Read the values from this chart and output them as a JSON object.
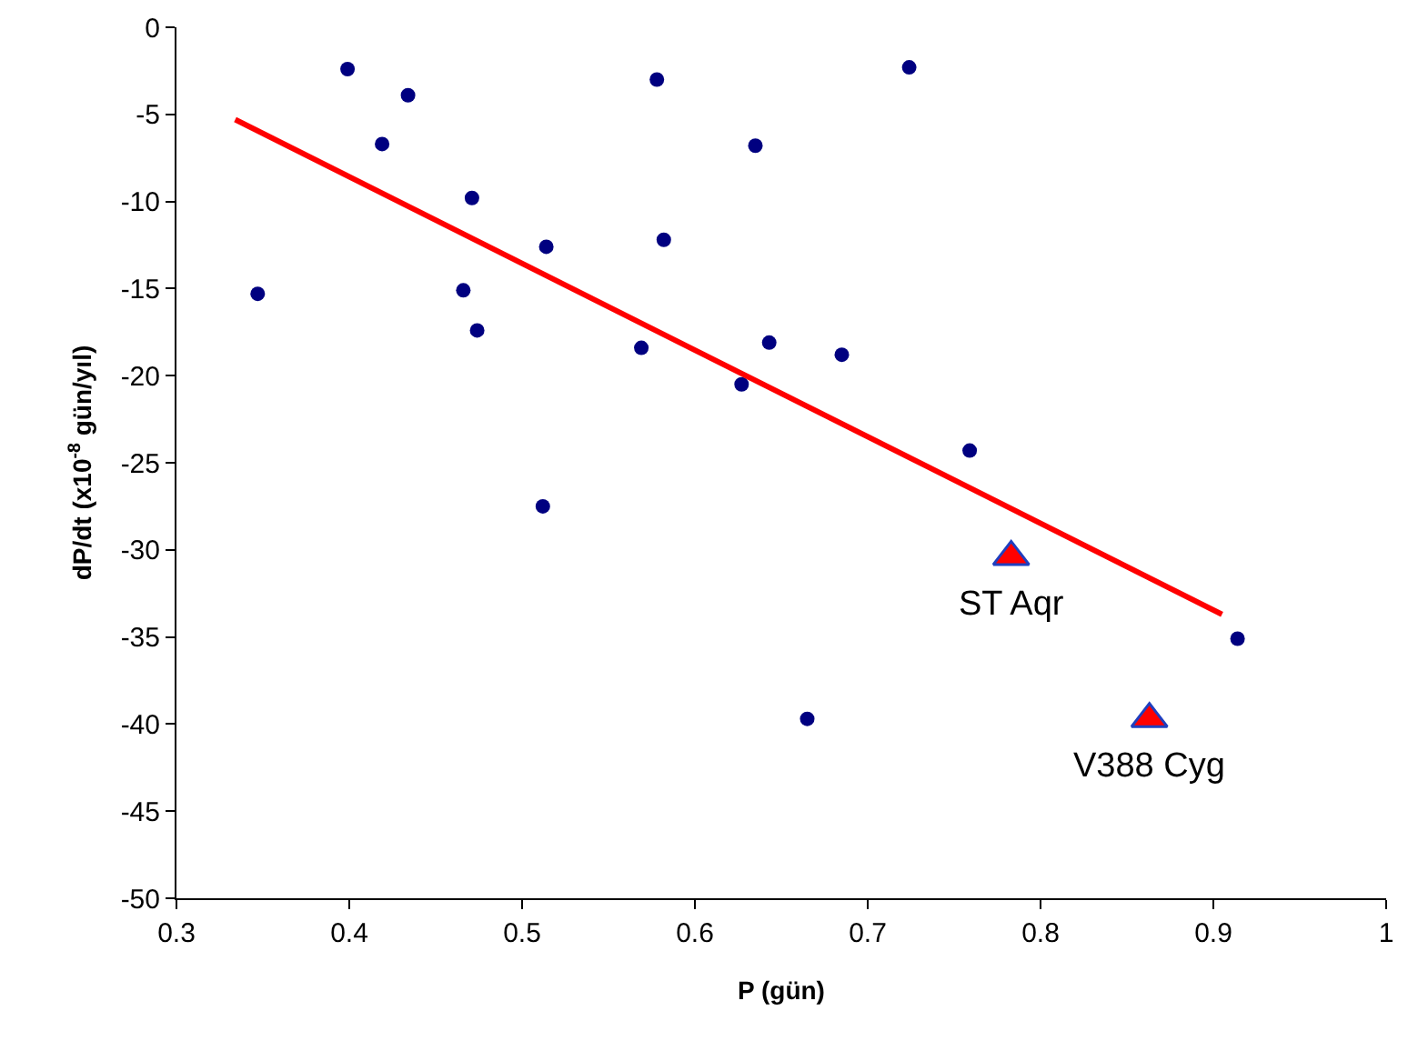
{
  "chart_data": {
    "type": "scatter",
    "xlabel": "P (gün)",
    "ylabel": "dP/dt (x10$^{-8}$ gün/yıl)",
    "xlim": [
      0.3,
      1.0
    ],
    "xticks": [
      0.3,
      0.4,
      0.5,
      0.6,
      0.7,
      0.8,
      0.9,
      {
        "value": 1.0,
        "label": "1"
      }
    ],
    "ylim": [
      -50,
      0
    ],
    "yticks": [
      -50,
      -45,
      -40,
      -35,
      -30,
      -25,
      -20,
      -15,
      -10,
      -5,
      0
    ],
    "grid": false,
    "series": [
      {
        "marker": "circle",
        "color": "#000080",
        "x": [
          0.347,
          0.399,
          0.434,
          0.419,
          0.471,
          0.466,
          0.474,
          0.514,
          0.512,
          0.569,
          0.578,
          0.582,
          0.635,
          0.627,
          0.643,
          0.685,
          0.665,
          0.724,
          0.759,
          0.914
        ],
        "values": [
          -15.3,
          -2.4,
          -3.9,
          -6.7,
          -9.8,
          -15.1,
          -17.4,
          -12.6,
          -27.5,
          -18.4,
          -3.0,
          -12.2,
          -6.8,
          -20.5,
          -18.1,
          -18.8,
          -39.7,
          -2.3,
          -24.3,
          -35.1
        ]
      },
      {
        "type": "line",
        "marker": "none",
        "color": "#ff0000",
        "x": [
          0.334,
          0.905
        ],
        "values": [
          -5.3,
          -33.7
        ]
      },
      {
        "type": "scatter",
        "marker": "triangle",
        "color": "#ff0000",
        "x": [
          0.783,
          0.863
        ],
        "values": [
          -30.4,
          -39.7
        ]
      }
    ],
    "annotations": [
      {
        "text": "ST Aqr",
        "x": 0.783,
        "y": -30.4
      },
      {
        "text": "V388 Cyg",
        "x": 0.863,
        "y": -39.7
      }
    ]
  }
}
